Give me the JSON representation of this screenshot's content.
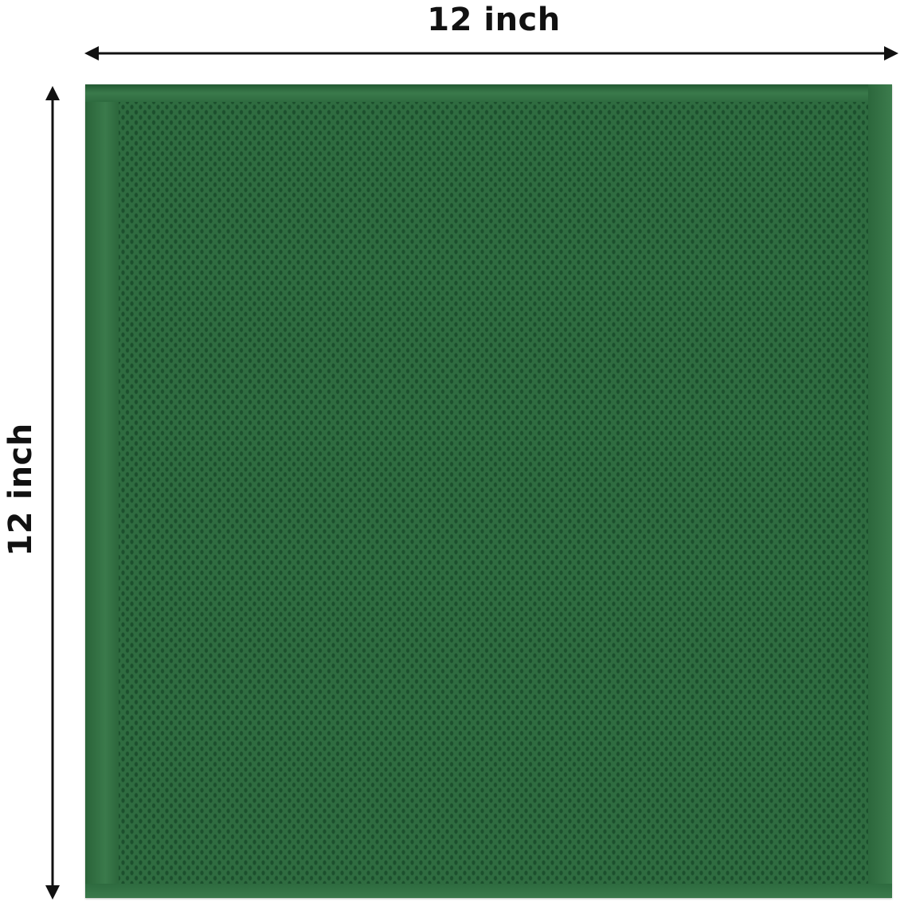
{
  "dimensions": {
    "width_label": "12 inch",
    "height_label": "12 inch"
  },
  "colors": {
    "cloth": "#2f6c40",
    "cloth_texture": "#1c4f2d",
    "arrow": "#111111"
  },
  "product": {
    "type": "waffle-weave-dish-cloth",
    "icon": "dishcloth-image"
  }
}
